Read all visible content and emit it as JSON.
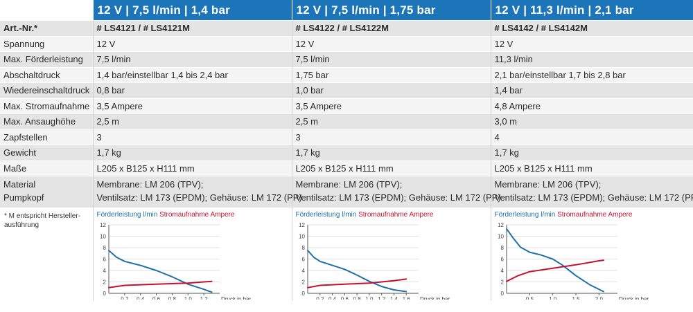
{
  "headers": [
    "12 V | 7,5 l/min | 1,4 bar",
    "12 V | 7,5 l/min | 1,75 bar",
    "12 V | 11,3 l/min | 2,1 bar"
  ],
  "art": {
    "label": "Art.-Nr.*",
    "values": [
      "# LS4121 / # LS4121M",
      "# LS4122 / # LS4122M",
      "# LS4142 / # LS4142M"
    ]
  },
  "rows": [
    {
      "label": "Spannung",
      "values": [
        "12 V",
        "12 V",
        "12 V"
      ]
    },
    {
      "label": "Max. Förderleistung",
      "values": [
        "7,5 l/min",
        "7,5 l/min",
        "11,3 l/min"
      ]
    },
    {
      "label": "Abschaltdruck",
      "values": [
        "1,4 bar/einstellbar 1,4 bis 2,4 bar",
        "1,75 bar",
        "2,1 bar/einstellbar 1,7 bis 2,8 bar"
      ]
    },
    {
      "label": "Wiedereinschaltdruck",
      "values": [
        "0,8 bar",
        "1,0 bar",
        "1,4 bar"
      ]
    },
    {
      "label": "Max. Stromaufnahme",
      "values": [
        "3,5 Ampere",
        "3,5 Ampere",
        "4,8 Ampere"
      ]
    },
    {
      "label": "Max. Ansaughöhe",
      "values": [
        "2,5 m",
        "2,5 m",
        "3,0 m"
      ]
    },
    {
      "label": "Zapfstellen",
      "values": [
        "3",
        "3",
        "4"
      ]
    },
    {
      "label": "Gewicht",
      "values": [
        "1,7 kg",
        "1,7 kg",
        "1,7 kg"
      ]
    },
    {
      "label": "Maße",
      "values": [
        "L205 x B125 x H111 mm",
        "L205 x B125 x H111 mm",
        "L205 x B125 x H111 mm"
      ]
    }
  ],
  "material": {
    "label1": "Material",
    "label2": "Pumpkopf",
    "line1": "Membrane: LM 206 (TPV);",
    "line2": "Ventilsatz: LM 173 (EPDM); Gehäuse: LM 172 (PP)"
  },
  "footnote": "* M entspricht Hersteller-ausführung",
  "legend": {
    "blue": "Förderleistung l/min",
    "red": "Stromaufnahme Ampere"
  },
  "colors": {
    "header": "#1c75b9",
    "flow": "#1f6fa8",
    "current": "#c8102e"
  },
  "chart_data": [
    {
      "type": "line",
      "xlabel": "Druck in bar",
      "xticks": [
        "0,2",
        "0,4",
        "0,6",
        "0,8",
        "1,0",
        "1,2"
      ],
      "xtick_values": [
        0.2,
        0.4,
        0.6,
        0.8,
        1.0,
        1.2
      ],
      "yticks": [
        0,
        2,
        4,
        6,
        8,
        10,
        12
      ],
      "xlim": [
        0,
        1.4
      ],
      "ylim": [
        0,
        12
      ],
      "series": [
        {
          "name": "Förderleistung l/min",
          "color": "#1f6fa8",
          "x": [
            0,
            0.1,
            0.2,
            0.4,
            0.6,
            0.8,
            1.0,
            1.2,
            1.3
          ],
          "y": [
            7.5,
            6.3,
            5.6,
            4.9,
            4.0,
            2.9,
            1.6,
            0.7,
            0.2
          ]
        },
        {
          "name": "Stromaufnahme Ampere",
          "color": "#c8102e",
          "x": [
            0,
            0.2,
            0.4,
            0.6,
            0.8,
            1.0,
            1.2,
            1.3
          ],
          "y": [
            1.0,
            1.4,
            1.5,
            1.6,
            1.7,
            1.8,
            2.0,
            2.1
          ]
        }
      ]
    },
    {
      "type": "line",
      "xlabel": "Druck in bar",
      "xticks": [
        "0,2",
        "0,4",
        "0,6",
        "0,8",
        "1,0",
        "1,2",
        "1,4",
        "1,6"
      ],
      "xtick_values": [
        0.2,
        0.4,
        0.6,
        0.8,
        1.0,
        1.2,
        1.4,
        1.6
      ],
      "yticks": [
        0,
        2,
        4,
        6,
        8,
        10,
        12
      ],
      "xlim": [
        0,
        1.8
      ],
      "ylim": [
        0,
        12
      ],
      "series": [
        {
          "name": "Förderleistung l/min",
          "color": "#1f6fa8",
          "x": [
            0,
            0.1,
            0.2,
            0.4,
            0.6,
            0.8,
            1.0,
            1.2,
            1.4,
            1.6
          ],
          "y": [
            7.5,
            6.3,
            5.6,
            4.9,
            4.2,
            3.2,
            2.1,
            1.2,
            0.6,
            0.3
          ]
        },
        {
          "name": "Stromaufnahme Ampere",
          "color": "#c8102e",
          "x": [
            0,
            0.2,
            0.4,
            0.6,
            0.8,
            1.0,
            1.2,
            1.4,
            1.6
          ],
          "y": [
            1.0,
            1.4,
            1.5,
            1.6,
            1.7,
            1.8,
            2.0,
            2.2,
            2.5
          ]
        }
      ]
    },
    {
      "type": "line",
      "xlabel": "Druck in bar",
      "xticks": [
        "0,5",
        "1,0",
        "1,5",
        "2,0"
      ],
      "xtick_values": [
        0.5,
        1.0,
        1.5,
        2.0
      ],
      "yticks": [
        0,
        2,
        4,
        6,
        8,
        10,
        12
      ],
      "xlim": [
        0,
        2.4
      ],
      "ylim": [
        0,
        12
      ],
      "series": [
        {
          "name": "Förderleistung l/min",
          "color": "#1f6fa8",
          "x": [
            0,
            0.15,
            0.3,
            0.5,
            0.75,
            1.0,
            1.2,
            1.5,
            1.8,
            2.1
          ],
          "y": [
            11.3,
            9.6,
            8.1,
            7.2,
            6.7,
            6.0,
            5.0,
            3.1,
            1.5,
            0.3
          ]
        },
        {
          "name": "Stromaufnahme Ampere",
          "color": "#c8102e",
          "x": [
            0,
            0.25,
            0.5,
            0.75,
            1.0,
            1.5,
            2.0,
            2.1
          ],
          "y": [
            2.1,
            3.1,
            3.8,
            4.1,
            4.4,
            5.0,
            5.7,
            5.8
          ]
        }
      ]
    }
  ]
}
